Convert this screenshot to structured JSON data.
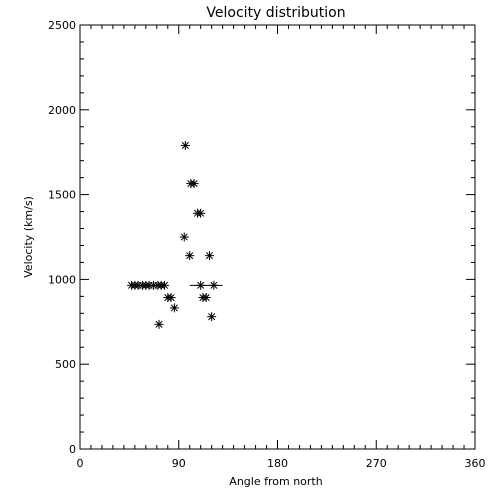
{
  "chart_data": {
    "type": "scatter",
    "title": "Velocity distribution",
    "xlabel": "Angle from north",
    "ylabel": "Velocity (km/s)",
    "xlim": [
      0,
      360
    ],
    "ylim": [
      0,
      2500
    ],
    "xticks": [
      "0",
      "90",
      "180",
      "270",
      "360"
    ],
    "yticks": [
      "0",
      "500",
      "1000",
      "1500",
      "2000",
      "2500"
    ],
    "x_tick_values": [
      0,
      90,
      180,
      270,
      360
    ],
    "y_tick_values": [
      0,
      500,
      1000,
      1500,
      2000,
      2500
    ],
    "x_minor_step": 10,
    "y_minor_step": 100,
    "marker": "asterisk",
    "grid": false,
    "colors": {
      "axis": "#000000",
      "marker": "#000000",
      "background": "#ffffff"
    },
    "series": [
      {
        "points": [
          [
            47,
            965
          ],
          [
            50,
            965
          ],
          [
            53,
            965
          ],
          [
            57,
            965
          ],
          [
            60,
            965
          ],
          [
            63,
            965
          ],
          [
            67,
            965
          ],
          [
            71,
            965
          ],
          [
            74,
            965
          ],
          [
            77,
            965
          ],
          [
            72,
            735
          ],
          [
            80,
            893
          ],
          [
            83,
            893
          ],
          [
            86,
            832
          ],
          [
            95,
            1250
          ],
          [
            96,
            1790
          ],
          [
            100,
            1140
          ],
          [
            101,
            1565
          ],
          [
            104,
            1565
          ],
          [
            107,
            1390
          ],
          [
            110,
            1390
          ],
          [
            110,
            965
          ],
          [
            112,
            893
          ],
          [
            115,
            893
          ],
          [
            118,
            1140
          ],
          [
            120,
            780
          ],
          [
            122,
            965
          ]
        ]
      }
    ],
    "error_bars": [
      {
        "y": 965,
        "x_from": 100,
        "x_to": 130
      }
    ]
  }
}
